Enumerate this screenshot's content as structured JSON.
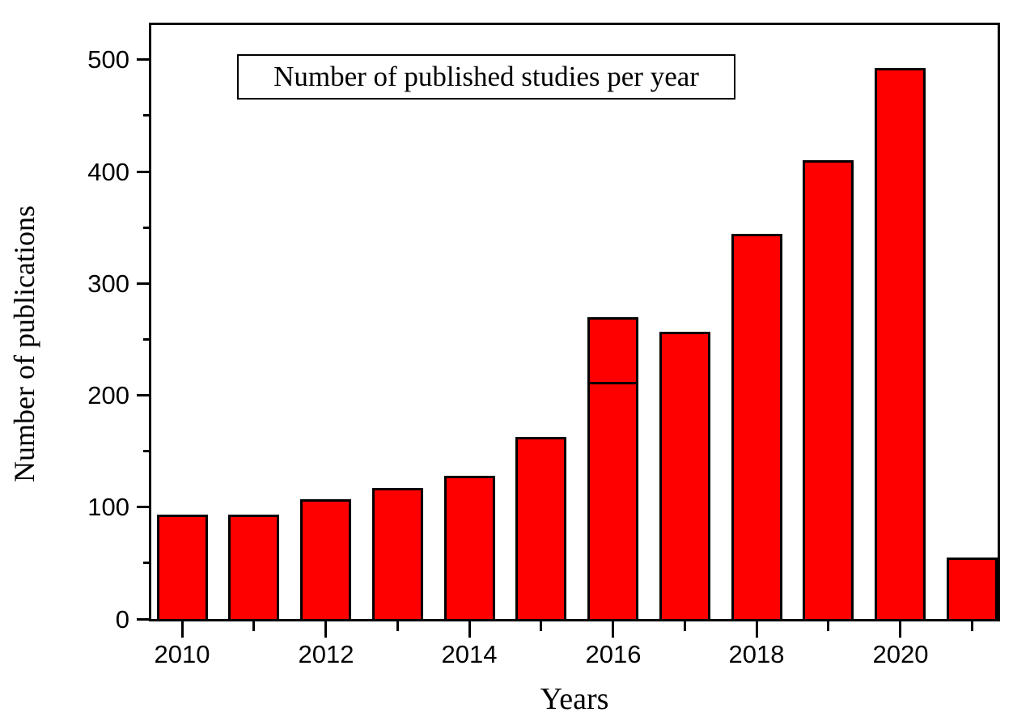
{
  "chart_data": {
    "type": "bar",
    "title": "Number of published studies per year",
    "xlabel": "Years",
    "ylabel": "Number of publications",
    "categories": [
      2010,
      2011,
      2012,
      2013,
      2014,
      2015,
      2016,
      2017,
      2018,
      2019,
      2020,
      2021
    ],
    "values": [
      93,
      93,
      107,
      117,
      128,
      163,
      270,
      257,
      344,
      410,
      493,
      55
    ],
    "bar_segment_line": {
      "year": 2016,
      "value": 214
    },
    "x_labeled_ticks": [
      "2010",
      "2012",
      "2014",
      "2016",
      "2018",
      "2020"
    ],
    "y_major_ticks": [
      0,
      100,
      200,
      300,
      400,
      500
    ],
    "y_minor_ticks": [
      50,
      150,
      250,
      350,
      450
    ],
    "ylim": [
      0,
      531
    ],
    "grid": false,
    "legend_position": "none",
    "bar_color": "#ff0000",
    "bar_border_color": "#000000",
    "axis_color": "#000000",
    "background_color": "#ffffff"
  }
}
